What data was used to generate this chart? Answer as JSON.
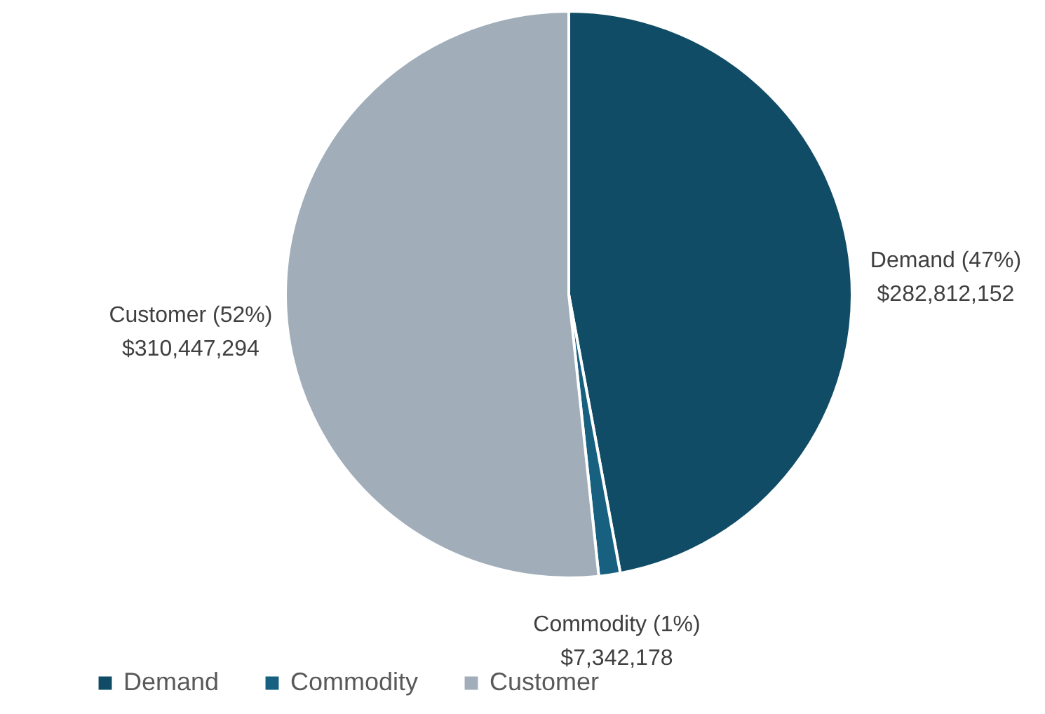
{
  "chart_data": {
    "type": "pie",
    "categories": [
      "Demand",
      "Commodity",
      "Customer"
    ],
    "values": [
      282812152,
      7342178,
      310447294
    ],
    "colors": [
      "#114c66",
      "#17607f",
      "#a1aeb9"
    ],
    "value_labels": [
      "Demand (47%)\n$282,812,152",
      "Commodity (1%)\n$7,342,178",
      "Customer (52%)\n$310,447,294"
    ],
    "legend": "bottom"
  }
}
